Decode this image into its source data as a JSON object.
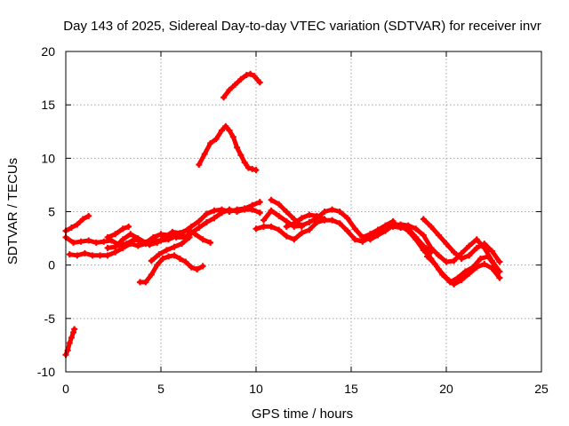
{
  "chart_data": {
    "type": "scatter",
    "title": "Day 143 of 2025, Sidereal Day-to-day VTEC variation (SDTVAR) for receiver invr",
    "xlabel": "GPS time / hours",
    "ylabel": "SDTVAR / TECUs",
    "xlim": [
      0,
      25
    ],
    "ylim": [
      -10,
      20
    ],
    "xticks": [
      0,
      5,
      10,
      15,
      20,
      25
    ],
    "yticks": [
      -10,
      -5,
      0,
      5,
      10,
      15,
      20
    ],
    "grid": true,
    "marker_color": "#ff0000",
    "series": [
      {
        "name": "track-low-start",
        "x": [
          0.0,
          0.1,
          0.2,
          0.3,
          0.4,
          0.45
        ],
        "y": [
          -8.4,
          -8.0,
          -7.3,
          -6.8,
          -6.3,
          -6.0
        ]
      },
      {
        "name": "track-a",
        "x": [
          0.0,
          0.3,
          0.6,
          0.9,
          1.2
        ],
        "y": [
          3.2,
          3.5,
          3.8,
          4.3,
          4.6
        ]
      },
      {
        "name": "track-b",
        "x": [
          0.0,
          0.4,
          0.8,
          1.2,
          1.6,
          2.0,
          2.4,
          2.8,
          3.2,
          3.6,
          4.0,
          4.4,
          4.8,
          5.2,
          5.6,
          6.0,
          6.4,
          6.8,
          7.2,
          7.6
        ],
        "y": [
          2.6,
          2.1,
          2.2,
          2.3,
          2.1,
          2.2,
          2.3,
          1.9,
          2.0,
          2.4,
          2.2,
          1.9,
          2.1,
          2.6,
          3.1,
          3.0,
          3.3,
          2.9,
          2.4,
          2.1
        ]
      },
      {
        "name": "track-c",
        "x": [
          0.2,
          0.6,
          1.0,
          1.4,
          1.8,
          2.2,
          2.6,
          3.0,
          3.4,
          3.8,
          4.2,
          4.6,
          5.0,
          5.4,
          5.8,
          6.2,
          6.6,
          7.0,
          7.4,
          7.8,
          8.2,
          8.6,
          9.0,
          9.4,
          9.8,
          10.2
        ],
        "y": [
          1.0,
          0.9,
          1.1,
          0.9,
          0.9,
          0.9,
          1.2,
          1.6,
          2.0,
          1.8,
          2.0,
          2.3,
          2.3,
          2.4,
          2.7,
          3.1,
          3.6,
          4.1,
          4.8,
          5.1,
          5.2,
          5.0,
          5.2,
          5.3,
          5.6,
          5.9
        ]
      },
      {
        "name": "track-d",
        "x": [
          2.2,
          2.6,
          3.0,
          3.4,
          3.8,
          4.2,
          4.6,
          5.0,
          5.4,
          5.8,
          6.2,
          6.6,
          7.0,
          7.4,
          7.8,
          8.2,
          8.6,
          9.0,
          9.4,
          9.8,
          10.2
        ],
        "y": [
          1.6,
          1.7,
          2.4,
          2.9,
          2.5,
          2.1,
          2.6,
          2.9,
          2.8,
          2.6,
          2.6,
          3.0,
          3.5,
          4.0,
          4.4,
          4.9,
          5.2,
          5.0,
          5.2,
          5.2,
          4.9
        ]
      },
      {
        "name": "track-e",
        "x": [
          2.2,
          2.6,
          3.0,
          3.3
        ],
        "y": [
          2.6,
          2.9,
          3.4,
          3.6
        ]
      },
      {
        "name": "track-f",
        "x": [
          3.9,
          4.2,
          4.5,
          4.8,
          5.1,
          5.4,
          5.7,
          6.0,
          6.3,
          6.6,
          6.9,
          7.2
        ],
        "y": [
          -1.6,
          -1.6,
          -0.9,
          0.0,
          0.6,
          0.8,
          0.9,
          0.6,
          0.3,
          -0.2,
          -0.4,
          -0.1
        ]
      },
      {
        "name": "track-g",
        "x": [
          4.5,
          4.9,
          5.3,
          5.7,
          6.1,
          6.5
        ],
        "y": [
          0.4,
          1.0,
          1.4,
          1.7,
          2.0,
          2.6
        ]
      },
      {
        "name": "track-peak-mid",
        "x": [
          7.0,
          7.3,
          7.6,
          7.9,
          8.2,
          8.4,
          8.6,
          8.8,
          9.0,
          9.2,
          9.4,
          9.6,
          9.8,
          10.0
        ],
        "y": [
          9.4,
          10.4,
          11.4,
          11.8,
          12.6,
          13.0,
          12.6,
          12.0,
          11.0,
          10.3,
          9.6,
          9.1,
          9.0,
          8.9
        ]
      },
      {
        "name": "track-peak-high",
        "x": [
          8.3,
          8.6,
          8.9,
          9.2,
          9.5,
          9.7,
          9.9,
          10.1,
          10.2
        ],
        "y": [
          15.7,
          16.4,
          16.9,
          17.4,
          17.8,
          17.9,
          17.7,
          17.3,
          17.1
        ]
      },
      {
        "name": "track-h",
        "x": [
          10.0,
          10.4,
          10.8,
          11.2,
          11.6,
          12.0,
          12.4,
          12.8,
          13.2,
          13.6,
          14.0,
          14.4,
          14.8,
          15.2,
          15.6,
          16.0,
          16.4,
          16.8,
          17.2,
          17.6,
          18.0,
          18.4,
          18.8,
          19.2
        ],
        "y": [
          3.4,
          3.6,
          3.6,
          3.3,
          2.7,
          2.4,
          3.0,
          3.3,
          4.0,
          4.2,
          4.2,
          3.9,
          3.2,
          2.4,
          2.2,
          2.6,
          3.0,
          3.5,
          3.6,
          3.5,
          3.4,
          2.6,
          1.8,
          1.2
        ]
      },
      {
        "name": "track-i",
        "x": [
          10.4,
          10.8,
          11.2,
          11.6,
          12.0,
          12.4,
          12.8,
          13.2,
          13.6,
          14.0,
          14.4,
          14.8,
          15.2,
          15.6,
          16.0,
          16.4,
          16.8,
          17.2,
          17.6,
          18.0,
          18.4,
          18.8,
          19.2,
          19.6,
          20.0,
          20.4,
          20.8,
          21.2,
          21.6,
          22.0,
          22.4,
          22.8
        ],
        "y": [
          4.2,
          5.1,
          4.6,
          4.1,
          3.6,
          3.7,
          4.0,
          4.4,
          5.0,
          5.2,
          5.0,
          4.4,
          3.4,
          2.6,
          2.4,
          2.8,
          3.2,
          3.7,
          3.8,
          3.7,
          3.4,
          2.8,
          1.6,
          0.9,
          0.3,
          0.4,
          1.1,
          1.8,
          2.4,
          1.6,
          0.4,
          -0.6
        ]
      },
      {
        "name": "track-j",
        "x": [
          10.8,
          11.2,
          11.6,
          12.0,
          12.4
        ],
        "y": [
          6.1,
          5.7,
          5.0,
          4.3,
          3.6
        ]
      },
      {
        "name": "track-k",
        "x": [
          11.6,
          12.0,
          12.4,
          12.8,
          13.2,
          13.6
        ],
        "y": [
          3.6,
          3.9,
          4.4,
          4.7,
          4.6,
          4.3
        ]
      },
      {
        "name": "track-l",
        "x": [
          15.6,
          16.0,
          16.4,
          16.8,
          17.2
        ],
        "y": [
          2.6,
          2.9,
          3.3,
          3.7,
          4.1
        ]
      },
      {
        "name": "track-m",
        "x": [
          17.2,
          17.6,
          18.0,
          18.4,
          18.8,
          19.2,
          19.6,
          20.0,
          20.4,
          20.8,
          21.2,
          21.6,
          22.0,
          22.4,
          22.8
        ],
        "y": [
          3.9,
          3.7,
          3.2,
          2.4,
          1.4,
          0.6,
          -0.4,
          -1.2,
          -1.8,
          -1.4,
          -0.8,
          -0.2,
          0.1,
          -0.3,
          -1.2
        ]
      },
      {
        "name": "track-n",
        "x": [
          18.8,
          19.2,
          19.6,
          20.0,
          20.4,
          20.8,
          21.2,
          21.6,
          22.0,
          22.4,
          22.8
        ],
        "y": [
          4.3,
          3.6,
          2.8,
          2.0,
          1.2,
          0.6,
          0.9,
          1.6,
          2.0,
          1.3,
          0.3
        ]
      },
      {
        "name": "track-o",
        "x": [
          19.0,
          19.4,
          19.8,
          20.2,
          20.6,
          21.0,
          21.4,
          21.8,
          22.2,
          22.6
        ],
        "y": [
          0.8,
          0.1,
          -0.9,
          -1.6,
          -1.2,
          -0.6,
          -0.2,
          0.6,
          0.8,
          -0.2
        ]
      }
    ]
  }
}
